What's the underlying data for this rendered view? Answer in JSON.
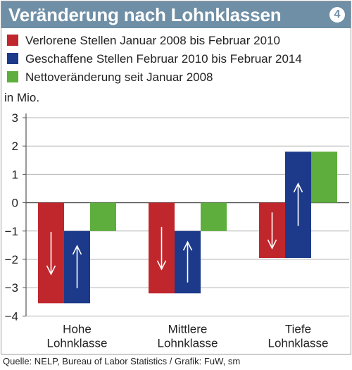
{
  "header": {
    "title": "Veränderung nach Lohnklassen",
    "badge": "4"
  },
  "legend": [
    {
      "label": "Verlorene Stellen Januar 2008 bis Februar 2010",
      "color": "#c0272d"
    },
    {
      "label": "Geschaffene Stellen Februar 2010 bis Februar 2014",
      "color": "#1d3a8a"
    },
    {
      "label": "Nettoveränderung seit Januar 2008",
      "color": "#5dae3c"
    }
  ],
  "unit_label": "in Mio.",
  "source": "Quelle: NELP, Bureau of Labor Statistics / Grafik: FuW, sm",
  "chart_data": {
    "type": "bar",
    "categories": [
      [
        "Hohe",
        "Lohnklasse"
      ],
      [
        "Mittlere",
        "Lohnklasse"
      ],
      [
        "Tiefe",
        "Lohnklasse"
      ]
    ],
    "series": [
      {
        "name": "Verlorene Stellen Januar 2008 bis Februar 2010",
        "color": "#c0272d",
        "ranges": [
          [
            0,
            -3.55
          ],
          [
            0,
            -3.2
          ],
          [
            0,
            -1.95
          ]
        ],
        "arrow": "down"
      },
      {
        "name": "Geschaffene Stellen Februar 2010 bis Februar 2014",
        "color": "#1d3a8a",
        "ranges": [
          [
            -3.55,
            -1.0
          ],
          [
            -3.2,
            -1.0
          ],
          [
            -1.95,
            1.8
          ]
        ],
        "arrow": "up"
      },
      {
        "name": "Nettoveränderung seit Januar 2008",
        "color": "#5dae3c",
        "ranges": [
          [
            0,
            -1.0
          ],
          [
            0,
            -1.0
          ],
          [
            0,
            1.8
          ]
        ]
      }
    ],
    "yticks": [
      "3",
      "2",
      "1",
      "0",
      "−1",
      "−2",
      "−3",
      "−4"
    ],
    "ylim": [
      -4,
      3
    ],
    "grid": true
  }
}
